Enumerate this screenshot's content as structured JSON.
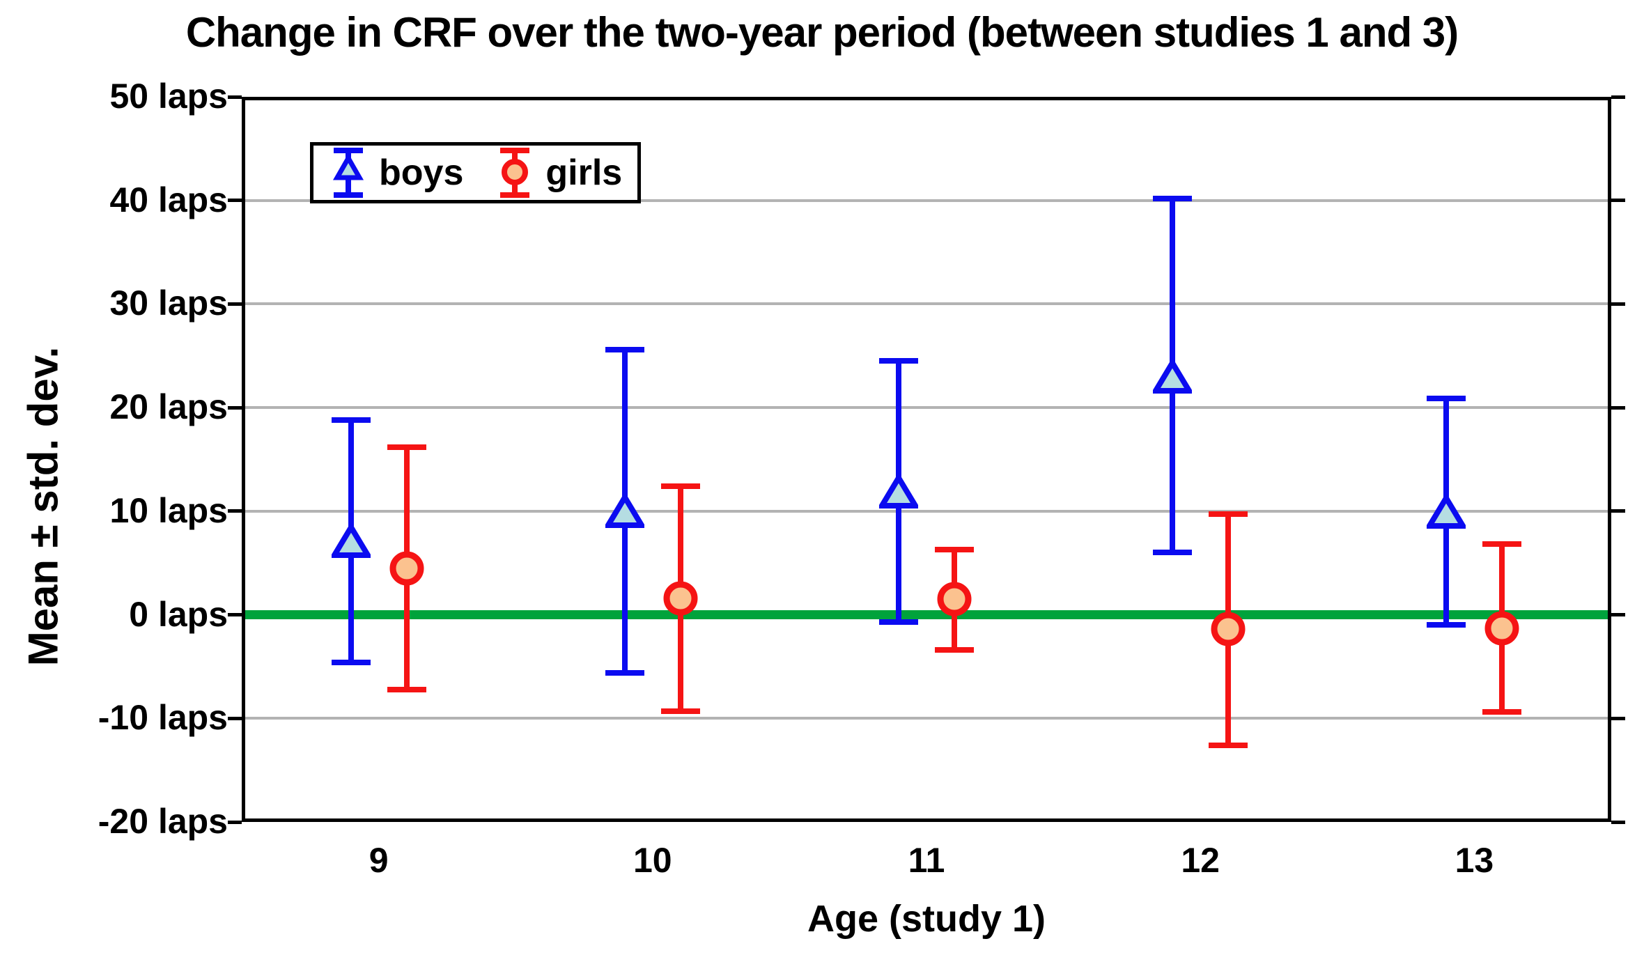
{
  "title": "Change in CRF over the two-year period (between studies 1 and 3)",
  "colors": {
    "boys_line": "#0b0bf0",
    "boys_fill": "#b5dde2",
    "girls_line": "#f51414",
    "girls_fill": "#fbc28f",
    "zero_line": "#00a33c",
    "gridline": "#b3b3b3",
    "axis": "#000000",
    "background": "#ffffff"
  },
  "chart_data": {
    "type": "errorbar",
    "title": "Change in CRF over the two-year period (between studies 1 and 3)",
    "xlabel": "Age (study 1)",
    "ylabel": "Mean ± std. dev.",
    "unit": "laps",
    "categories": [
      "9",
      "10",
      "11",
      "12",
      "13"
    ],
    "ylim": [
      -20,
      50
    ],
    "y_tick_values": [
      50,
      40,
      30,
      20,
      10,
      0,
      -10,
      -20
    ],
    "y_tick_labels": [
      "50 laps",
      "40 laps",
      "30 laps",
      "20 laps",
      "10 laps",
      "0 laps",
      "-10 laps",
      "-20 laps"
    ],
    "grid": true,
    "zero_reference_line": 0,
    "legend_position": "top-left-inside",
    "series": [
      {
        "name": "boys",
        "marker": "triangle",
        "color": "#0b0bf0",
        "fill": "#b5dde2",
        "means": [
          7.1,
          10.0,
          11.9,
          23.0,
          9.9
        ],
        "upper": [
          18.8,
          25.6,
          24.5,
          40.2,
          20.9
        ],
        "lower": [
          -4.6,
          -5.6,
          -0.7,
          6.0,
          -1.0
        ]
      },
      {
        "name": "girls",
        "marker": "circle",
        "color": "#f51414",
        "fill": "#fbc28f",
        "means": [
          4.5,
          1.6,
          1.5,
          -1.4,
          -1.3
        ],
        "upper": [
          16.2,
          12.4,
          6.3,
          9.7,
          6.8
        ],
        "lower": [
          -7.2,
          -9.3,
          -3.4,
          -12.6,
          -9.4
        ]
      }
    ]
  }
}
